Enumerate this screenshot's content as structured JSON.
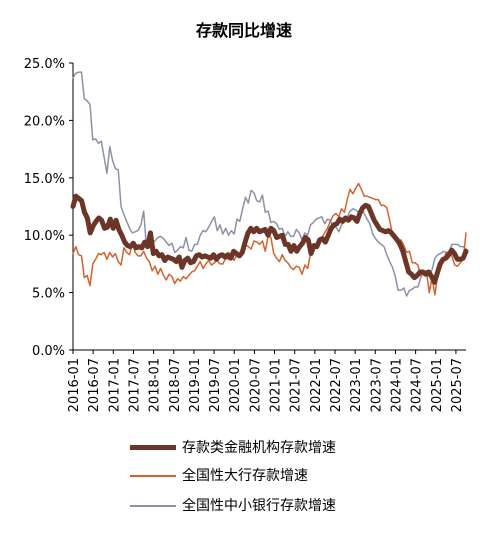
{
  "chart_data": {
    "type": "line",
    "title": "存款同比增速",
    "xlabel": "",
    "ylabel": "",
    "ylim": [
      0,
      25
    ],
    "y_ticks": [
      "0.0%",
      "5.0%",
      "10.0%",
      "15.0%",
      "20.0%",
      "25.0%"
    ],
    "x_tick_labels": [
      "2016-01",
      "2016-07",
      "2017-01",
      "2017-07",
      "2018-01",
      "2018-07",
      "2019-01",
      "2019-07",
      "2020-01",
      "2020-07",
      "2021-01",
      "2021-07",
      "2022-01",
      "2022-07",
      "2023-01",
      "2023-07",
      "2024-01",
      "2024-07",
      "2025-01",
      "2025-07"
    ],
    "x_start": "2016-01",
    "x_end": "2025-10",
    "grid": false,
    "legend_position": "bottom",
    "series": [
      {
        "name": "存款类金融机构存款增速",
        "color": "#6b3528",
        "values": [
          12.5,
          13.4,
          13.2,
          13.0,
          12.0,
          11.5,
          10.2,
          10.8,
          11.2,
          11.5,
          11.3,
          10.6,
          10.7,
          11.4,
          10.6,
          11.3,
          10.5,
          10.0,
          9.4,
          9.1,
          9.0,
          9.3,
          8.9,
          9.0,
          8.9,
          9.4,
          9.0,
          10.2,
          8.4,
          8.6,
          8.2,
          8.3,
          7.8,
          8.1,
          8.0,
          7.9,
          7.7,
          8.1,
          7.2,
          7.8,
          8.0,
          7.6,
          7.7,
          8.2,
          8.3,
          8.1,
          8.2,
          8.1,
          8.0,
          8.3,
          7.9,
          8.2,
          8.3,
          8.1,
          8.3,
          8.0,
          8.6,
          8.4,
          8.2,
          8.5,
          9.4,
          10.2,
          10.6,
          10.3,
          10.6,
          10.3,
          10.4,
          10.5,
          10.0,
          10.6,
          10.4,
          9.8,
          9.9,
          10.0,
          9.2,
          9.2,
          8.6,
          9.1,
          8.6,
          9.0,
          9.3,
          9.8,
          9.6,
          8.4,
          9.1,
          9.0,
          9.6,
          9.7,
          9.4,
          10.0,
          10.6,
          10.9,
          11.0,
          11.4,
          11.2,
          11.5,
          11.3,
          11.6,
          11.5,
          11.2,
          11.9,
          12.4,
          12.6,
          12.5,
          11.9,
          11.3,
          10.9,
          10.5,
          10.4,
          10.3,
          10.4,
          10.2,
          9.9,
          9.6,
          9.2,
          8.6,
          7.7,
          6.8,
          6.6,
          6.3,
          6.5,
          6.8,
          6.8,
          6.6,
          6.8,
          6.4,
          5.9,
          6.7,
          7.5,
          7.9,
          8.0,
          8.3,
          8.7,
          8.4,
          7.9,
          7.9,
          8.0,
          8.6
        ]
      },
      {
        "name": "全国性大行存款增速",
        "color": "#d4622f",
        "values": [
          8.4,
          9.0,
          8.3,
          8.2,
          6.3,
          6.5,
          5.6,
          7.5,
          7.9,
          8.4,
          8.3,
          8.5,
          7.9,
          8.5,
          8.1,
          8.4,
          7.7,
          7.4,
          8.9,
          8.5,
          8.3,
          9.3,
          8.5,
          8.2,
          8.2,
          8.6,
          8.0,
          7.7,
          6.9,
          7.3,
          6.6,
          7.1,
          6.5,
          6.1,
          6.6,
          6.4,
          5.8,
          6.2,
          6.0,
          6.4,
          6.2,
          6.5,
          6.8,
          6.9,
          7.3,
          7.7,
          7.1,
          7.5,
          7.8,
          7.4,
          7.6,
          7.8,
          7.5,
          7.5,
          8.0,
          7.9,
          8.3,
          7.8,
          8.4,
          8.2,
          8.6,
          9.2,
          9.0,
          8.8,
          9.5,
          9.4,
          9.2,
          9.5,
          8.6,
          9.9,
          9.8,
          8.4,
          8.0,
          7.7,
          8.3,
          7.8,
          7.6,
          7.2,
          7.0,
          7.3,
          7.2,
          6.6,
          7.4,
          7.1,
          8.4,
          8.6,
          9.1,
          9.5,
          9.8,
          10.2,
          10.6,
          11.2,
          11.7,
          11.9,
          11.6,
          12.3,
          12.0,
          13.1,
          14.0,
          13.6,
          14.1,
          14.5,
          14.0,
          13.4,
          13.4,
          13.3,
          13.2,
          13.1,
          13.1,
          12.6,
          12.6,
          12.4,
          11.3,
          10.1,
          9.5,
          9.4,
          9.6,
          9.1,
          8.5,
          8.6,
          7.6,
          7.6,
          7.4,
          6.5,
          6.8,
          6.9,
          5.0,
          6.3,
          4.8,
          6.6,
          7.2,
          7.8,
          8.5,
          8.5,
          8.2,
          7.4,
          7.3,
          7.6,
          7.9,
          10.2
        ]
      },
      {
        "name": "全国性中小银行存款增速",
        "color": "#8c91a8",
        "values": [
          23.7,
          24.1,
          24.2,
          24.2,
          21.9,
          21.7,
          21.4,
          18.3,
          18.4,
          18.0,
          18.2,
          16.8,
          15.4,
          17.7,
          16.5,
          15.8,
          15.7,
          12.5,
          11.8,
          11.2,
          10.6,
          10.2,
          10.3,
          10.4,
          10.9,
          12.1,
          8.9,
          10.0,
          9.3,
          9.5,
          9.8,
          9.9,
          9.7,
          9.4,
          9.1,
          9.3,
          8.5,
          8.7,
          9.0,
          8.9,
          9.8,
          8.7,
          8.6,
          9.2,
          9.2,
          10.0,
          10.4,
          10.3,
          10.7,
          11.2,
          11.6,
          10.4,
          10.9,
          10.1,
          10.6,
          10.0,
          10.4,
          10.1,
          11.4,
          11.2,
          12.3,
          13.3,
          12.8,
          13.9,
          13.7,
          13.0,
          12.9,
          13.5,
          12.0,
          12.1,
          11.1,
          11.2,
          11.0,
          10.5,
          10.6,
          9.9,
          10.3,
          9.9,
          9.9,
          10.5,
          10.2,
          9.6,
          10.2,
          10.0,
          10.9,
          11.1,
          11.4,
          11.5,
          11.6,
          11.0,
          11.4,
          11.3,
          10.7,
          10.7,
          10.3,
          10.9,
          11.3,
          11.6,
          12.1,
          12.3,
          12.2,
          12.0,
          12.3,
          11.9,
          11.4,
          11.0,
          10.1,
          9.7,
          9.4,
          9.2,
          9.0,
          8.3,
          7.7,
          7.2,
          6.4,
          5.2,
          5.2,
          5.4,
          4.7,
          5.2,
          5.3,
          5.5,
          5.5,
          6.3,
          6.7,
          6.9,
          6.4,
          7.0,
          8.0,
          8.3,
          8.4,
          8.6,
          8.5,
          8.5,
          9.2,
          9.2,
          9.2,
          9.0,
          9.0,
          8.8
        ]
      }
    ]
  }
}
